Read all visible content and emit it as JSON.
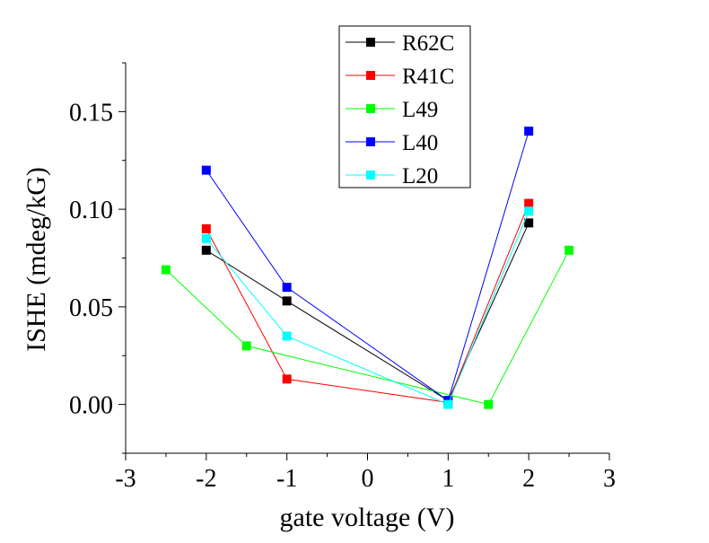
{
  "chart_data": {
    "type": "line",
    "title": "",
    "xlabel": "gate voltage (V)",
    "ylabel": "ISHE (mdeg/kG)",
    "xlim": [
      -3,
      3
    ],
    "ylim": [
      -0.025,
      0.175
    ],
    "x_ticks": [
      -3,
      -2,
      -1,
      0,
      1,
      2,
      3
    ],
    "x_tick_labels": [
      "-3",
      "-2",
      "-1",
      "0",
      "1",
      "2",
      "3"
    ],
    "y_ticks": [
      0.0,
      0.05,
      0.1,
      0.15
    ],
    "y_tick_labels": [
      "0.00",
      "0.05",
      "0.10",
      "0.15"
    ],
    "grid": false,
    "legend_position": "top-center",
    "series": [
      {
        "name": "R62C",
        "color": "#000000",
        "marker": "square",
        "x": [
          -2,
          -1,
          1,
          2
        ],
        "y": [
          0.079,
          0.053,
          0.002,
          0.093
        ]
      },
      {
        "name": "R41C",
        "color": "#ff0000",
        "marker": "square",
        "x": [
          -2,
          -1,
          1,
          2
        ],
        "y": [
          0.09,
          0.013,
          0.001,
          0.103
        ]
      },
      {
        "name": "L49",
        "color": "#00ff00",
        "marker": "square",
        "x": [
          -2.5,
          -1.5,
          1.5,
          2.5
        ],
        "y": [
          0.069,
          0.03,
          0.0,
          0.079
        ]
      },
      {
        "name": "L40",
        "color": "#0000ff",
        "marker": "square",
        "x": [
          -2,
          -1,
          1,
          2
        ],
        "y": [
          0.12,
          0.06,
          0.002,
          0.14
        ]
      },
      {
        "name": "L20",
        "color": "#00ffff",
        "marker": "square",
        "x": [
          -2,
          -1,
          1,
          2
        ],
        "y": [
          0.085,
          0.035,
          0.0,
          0.099
        ]
      }
    ]
  }
}
